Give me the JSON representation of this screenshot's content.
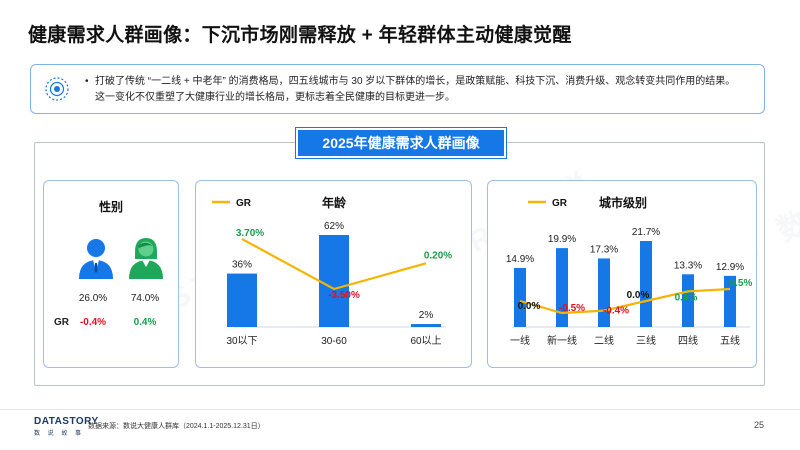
{
  "title": "健康需求人群画像：下沉市场刚需释放 + 年轻群体主动健康觉醒",
  "info": {
    "bullet": "•",
    "line1": "打破了传统 “一二线 + 中老年” 的消费格局，四五线城市与 30 岁以下群体的增长，是政策赋能、科技下沉、消费升级、观念转变共同作用的结果。",
    "line2": "这一变化不仅重塑了大健康行业的增长格局，更标志着全民健康的目标更进一步。"
  },
  "section_title": "2025年健康需求人群画像",
  "colors": {
    "bar": "#1677e6",
    "line": "#f5b400",
    "positive": "#1a9d4b",
    "negative": "#e0101e",
    "male_icon": "#1677e6",
    "female_icon": "#1fa85a"
  },
  "watermark": "DATASTORY 数说",
  "chart_data": [
    {
      "type": "table",
      "title": "性别",
      "categories": [
        "男",
        "女"
      ],
      "shares": [
        "26.0%",
        "74.0%"
      ],
      "gr_label": "GR",
      "gr": [
        "-0.4%",
        "0.4%"
      ],
      "gr_values": [
        -0.4,
        0.4
      ]
    },
    {
      "type": "bar",
      "title": "年龄",
      "legend": "GR",
      "categories": [
        "30以下",
        "30-60",
        "60以上"
      ],
      "values": [
        36,
        62,
        2
      ],
      "value_labels": [
        "36%",
        "62%",
        "2%"
      ],
      "line_series": {
        "name": "GR",
        "values": [
          3.7,
          -3.5,
          0.2
        ],
        "labels": [
          "3.70%",
          "-3.50%",
          "0.20%"
        ]
      }
    },
    {
      "type": "bar",
      "title": "城市级别",
      "legend": "GR",
      "categories": [
        "一线",
        "新一线",
        "二线",
        "三线",
        "四线",
        "五线"
      ],
      "values": [
        14.9,
        19.9,
        17.3,
        21.7,
        13.3,
        12.9
      ],
      "value_labels": [
        "14.9%",
        "19.9%",
        "17.3%",
        "21.7%",
        "13.3%",
        "12.9%"
      ],
      "line_series": {
        "name": "GR",
        "values": [
          0.0,
          -0.5,
          -0.4,
          0.0,
          0.4,
          0.5
        ],
        "labels": [
          "0.0%",
          "-0.5%",
          "-0.4%",
          "0.0%",
          "0.4%",
          "0.5%"
        ]
      }
    }
  ],
  "footer": {
    "logo": "DATASTORY",
    "logo_sub": "数 说 故 事",
    "source": "数据来源：数说大健康人群库（2024.1.1-2025.12.31日）",
    "page": "25"
  }
}
